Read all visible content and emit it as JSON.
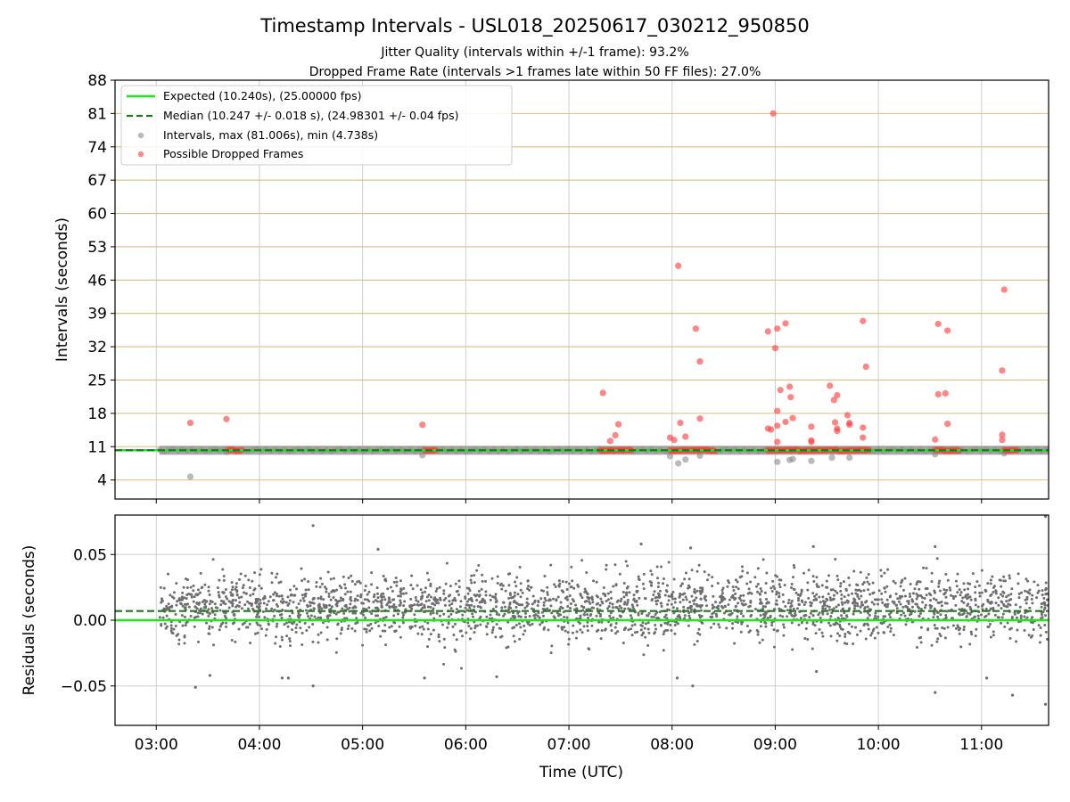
{
  "chart_data": {
    "type": "scatter",
    "title": "Timestamp Intervals - USL018_20250617_030212_950850",
    "subtitle_lines": [
      "Jitter Quality (intervals within +/-1 frame): 93.2%",
      "Dropped Frame Rate (intervals >1 frames late within 50 FF files): 27.0%"
    ],
    "x_axis": {
      "label": "Time (UTC)",
      "range_hours": [
        2.6,
        11.65
      ],
      "ticks": [
        {
          "value": 3,
          "label": "03:00"
        },
        {
          "value": 4,
          "label": "04:00"
        },
        {
          "value": 5,
          "label": "05:00"
        },
        {
          "value": 6,
          "label": "06:00"
        },
        {
          "value": 7,
          "label": "07:00"
        },
        {
          "value": 8,
          "label": "08:00"
        },
        {
          "value": 9,
          "label": "09:00"
        },
        {
          "value": 10,
          "label": "10:00"
        },
        {
          "value": 11,
          "label": "11:00"
        }
      ]
    },
    "top_panel": {
      "ylabel": "Intervals (seconds)",
      "ylim": [
        0,
        88
      ],
      "y_ticks": [
        4,
        11,
        18,
        25,
        32,
        39,
        46,
        53,
        60,
        67,
        74,
        81,
        88
      ],
      "grid": true,
      "legend_placement": "upper-left",
      "legend": [
        {
          "label": "Expected (10.240s), (25.00000 fps)",
          "kind": "line-solid",
          "color": "#1ee61e"
        },
        {
          "label": "Median (10.247 +/- 0.018 s), (24.98301 +/- 0.04 fps)",
          "kind": "line-dashed",
          "color": "#1b7a1b"
        },
        {
          "label": "Intervals, max (81.006s), min (4.738s)",
          "kind": "marker",
          "color": "#9a9a9a"
        },
        {
          "label": "Possible Dropped Frames",
          "kind": "marker",
          "color": "#ff3b3b"
        }
      ],
      "expected_interval": 10.24,
      "median_interval": 10.247,
      "normal_interval_span_hours": [
        3.03,
        11.65
      ],
      "gray_outliers": [
        {
          "x": 3.33,
          "y": 4.7
        },
        {
          "x": 3.68,
          "y": 9.9
        },
        {
          "x": 5.58,
          "y": 9.2
        },
        {
          "x": 7.98,
          "y": 9.0
        },
        {
          "x": 8.06,
          "y": 7.5
        },
        {
          "x": 8.13,
          "y": 8.3
        },
        {
          "x": 8.27,
          "y": 9.1
        },
        {
          "x": 9.02,
          "y": 7.8
        },
        {
          "x": 9.14,
          "y": 8.2
        },
        {
          "x": 9.17,
          "y": 8.4
        },
        {
          "x": 9.35,
          "y": 8.0
        },
        {
          "x": 9.55,
          "y": 8.7
        },
        {
          "x": 9.72,
          "y": 8.7
        },
        {
          "x": 10.55,
          "y": 9.4
        },
        {
          "x": 11.22,
          "y": 9.6
        }
      ],
      "dropped_frames": [
        {
          "x": 3.33,
          "y": 16.0
        },
        {
          "x": 3.68,
          "y": 16.8
        },
        {
          "x": 5.58,
          "y": 15.6
        },
        {
          "x": 7.33,
          "y": 22.3
        },
        {
          "x": 7.4,
          "y": 12.2
        },
        {
          "x": 7.45,
          "y": 13.4
        },
        {
          "x": 7.48,
          "y": 15.7
        },
        {
          "x": 7.98,
          "y": 12.9
        },
        {
          "x": 8.02,
          "y": 12.4
        },
        {
          "x": 8.06,
          "y": 49.0
        },
        {
          "x": 8.08,
          "y": 16.0
        },
        {
          "x": 8.13,
          "y": 13.1
        },
        {
          "x": 8.23,
          "y": 35.8
        },
        {
          "x": 8.27,
          "y": 28.9
        },
        {
          "x": 8.27,
          "y": 16.9
        },
        {
          "x": 8.93,
          "y": 35.2
        },
        {
          "x": 8.93,
          "y": 14.8
        },
        {
          "x": 8.96,
          "y": 14.6
        },
        {
          "x": 8.98,
          "y": 81.0
        },
        {
          "x": 9.0,
          "y": 31.7
        },
        {
          "x": 9.02,
          "y": 35.8
        },
        {
          "x": 9.02,
          "y": 18.5
        },
        {
          "x": 9.02,
          "y": 15.4
        },
        {
          "x": 9.02,
          "y": 12.0
        },
        {
          "x": 9.05,
          "y": 22.9
        },
        {
          "x": 9.1,
          "y": 36.9
        },
        {
          "x": 9.1,
          "y": 16.2
        },
        {
          "x": 9.14,
          "y": 23.6
        },
        {
          "x": 9.15,
          "y": 21.4
        },
        {
          "x": 9.17,
          "y": 17.0
        },
        {
          "x": 9.35,
          "y": 15.2
        },
        {
          "x": 9.35,
          "y": 12.3
        },
        {
          "x": 9.35,
          "y": 12.0
        },
        {
          "x": 9.53,
          "y": 23.8
        },
        {
          "x": 9.57,
          "y": 20.8
        },
        {
          "x": 9.58,
          "y": 16.1
        },
        {
          "x": 9.6,
          "y": 21.8
        },
        {
          "x": 9.6,
          "y": 14.8
        },
        {
          "x": 9.6,
          "y": 14.3
        },
        {
          "x": 9.7,
          "y": 17.6
        },
        {
          "x": 9.72,
          "y": 16.0
        },
        {
          "x": 9.72,
          "y": 15.6
        },
        {
          "x": 9.85,
          "y": 37.4
        },
        {
          "x": 9.85,
          "y": 15.0
        },
        {
          "x": 9.85,
          "y": 12.9
        },
        {
          "x": 9.88,
          "y": 27.8
        },
        {
          "x": 10.55,
          "y": 12.5
        },
        {
          "x": 10.58,
          "y": 36.8
        },
        {
          "x": 10.58,
          "y": 22.0
        },
        {
          "x": 10.65,
          "y": 22.2
        },
        {
          "x": 10.67,
          "y": 35.4
        },
        {
          "x": 10.67,
          "y": 15.8
        },
        {
          "x": 11.2,
          "y": 27.0
        },
        {
          "x": 11.2,
          "y": 13.5
        },
        {
          "x": 11.2,
          "y": 12.4
        },
        {
          "x": 11.22,
          "y": 44.0
        }
      ],
      "dropped_frame_clusters_hours": [
        [
          3.7,
          3.84
        ],
        [
          5.6,
          5.72
        ],
        [
          7.3,
          7.62
        ],
        [
          7.98,
          8.42
        ],
        [
          8.92,
          9.92
        ],
        [
          10.55,
          10.8
        ],
        [
          11.22,
          11.35
        ]
      ]
    },
    "bottom_panel": {
      "ylabel": "Residuals (seconds)",
      "ylim": [
        -0.08,
        0.08
      ],
      "y_ticks": [
        {
          "value": 0.05,
          "label": "0.05"
        },
        {
          "value": 0.0,
          "label": "0.00"
        },
        {
          "value": -0.05,
          "label": "−0.05"
        }
      ],
      "grid": true,
      "expected_residual": 0.0,
      "median_residual": 0.007,
      "residual_mean": 0.01,
      "residual_std": 0.018,
      "residual_point_count": 2600,
      "residual_span_hours": [
        3.03,
        11.65
      ],
      "notable_residuals": [
        {
          "x": 3.38,
          "y": -0.051
        },
        {
          "x": 3.52,
          "y": -0.042
        },
        {
          "x": 4.22,
          "y": -0.044
        },
        {
          "x": 4.28,
          "y": -0.044
        },
        {
          "x": 4.52,
          "y": 0.072
        },
        {
          "x": 4.52,
          "y": -0.05
        },
        {
          "x": 5.15,
          "y": 0.054
        },
        {
          "x": 5.6,
          "y": -0.044
        },
        {
          "x": 6.3,
          "y": -0.043
        },
        {
          "x": 7.7,
          "y": 0.058
        },
        {
          "x": 8.05,
          "y": -0.044
        },
        {
          "x": 8.18,
          "y": 0.055
        },
        {
          "x": 8.2,
          "y": -0.05
        },
        {
          "x": 9.37,
          "y": 0.056
        },
        {
          "x": 9.4,
          "y": -0.039
        },
        {
          "x": 10.55,
          "y": -0.055
        },
        {
          "x": 10.55,
          "y": 0.056
        },
        {
          "x": 11.05,
          "y": -0.044
        },
        {
          "x": 11.3,
          "y": -0.057
        },
        {
          "x": 11.62,
          "y": 0.079
        },
        {
          "x": 11.62,
          "y": -0.064
        }
      ]
    }
  },
  "colors": {
    "expected": "#1ee61e",
    "median": "#1b7a1b",
    "interval_marker": "#8c8c8c",
    "dropped": "#ff3b3b",
    "residual_marker": "#6e6e6e",
    "top_grid_horizontal": "#d8c07a",
    "grid": "#cfcfcf"
  }
}
